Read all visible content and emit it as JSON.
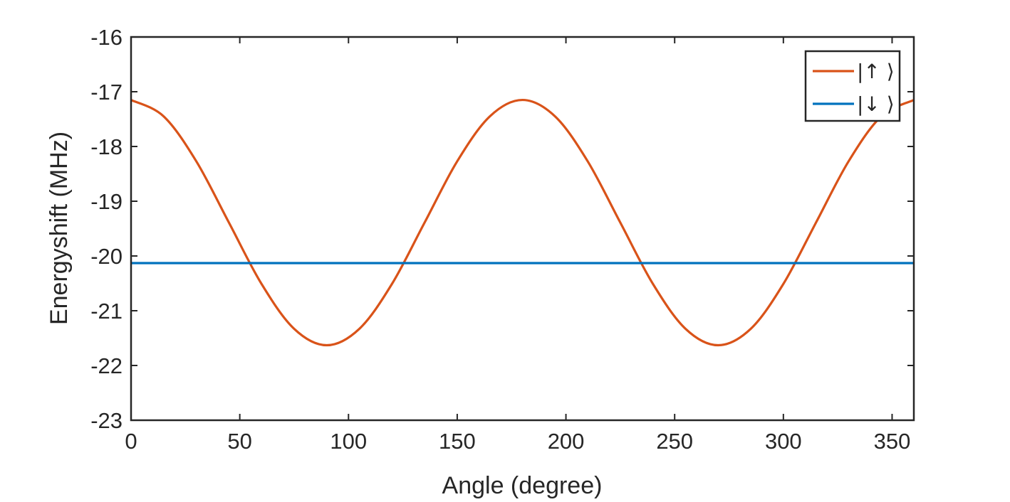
{
  "chart_data": {
    "type": "line",
    "title": "",
    "xlabel": "Angle (degree)",
    "ylabel": "Energyshift (MHz)",
    "xlim": [
      0,
      360
    ],
    "ylim": [
      -23,
      -16
    ],
    "xticks": [
      0,
      50,
      100,
      150,
      200,
      250,
      300,
      350
    ],
    "yticks": [
      -23,
      -22,
      -21,
      -20,
      -19,
      -18,
      -17,
      -16
    ],
    "xtick_labels": [
      "0",
      "50",
      "100",
      "150",
      "200",
      "250",
      "300",
      "350"
    ],
    "ytick_labels": [
      "-23",
      "-22",
      "-21",
      "-20",
      "-19",
      "-18",
      "-17",
      "-16"
    ],
    "grid": false,
    "legend_position": "top-right",
    "series": [
      {
        "name": "|↑ ⟩",
        "color": "#D95319",
        "x": [
          0,
          15,
          30,
          45,
          60,
          75,
          90,
          105,
          120,
          135,
          150,
          165,
          180,
          195,
          210,
          225,
          240,
          255,
          270,
          285,
          300,
          315,
          330,
          345,
          360
        ],
        "y": [
          -17.15,
          -17.45,
          -18.27,
          -19.39,
          -20.51,
          -21.33,
          -21.63,
          -21.33,
          -20.51,
          -19.39,
          -18.27,
          -17.45,
          -17.15,
          -17.45,
          -18.27,
          -19.39,
          -20.51,
          -21.33,
          -21.63,
          -21.33,
          -20.51,
          -19.39,
          -18.27,
          -17.45,
          -17.15
        ]
      },
      {
        "name": "|↓ ⟩",
        "color": "#0072BD",
        "x": [
          0,
          360
        ],
        "y": [
          -20.13,
          -20.13
        ]
      }
    ]
  }
}
